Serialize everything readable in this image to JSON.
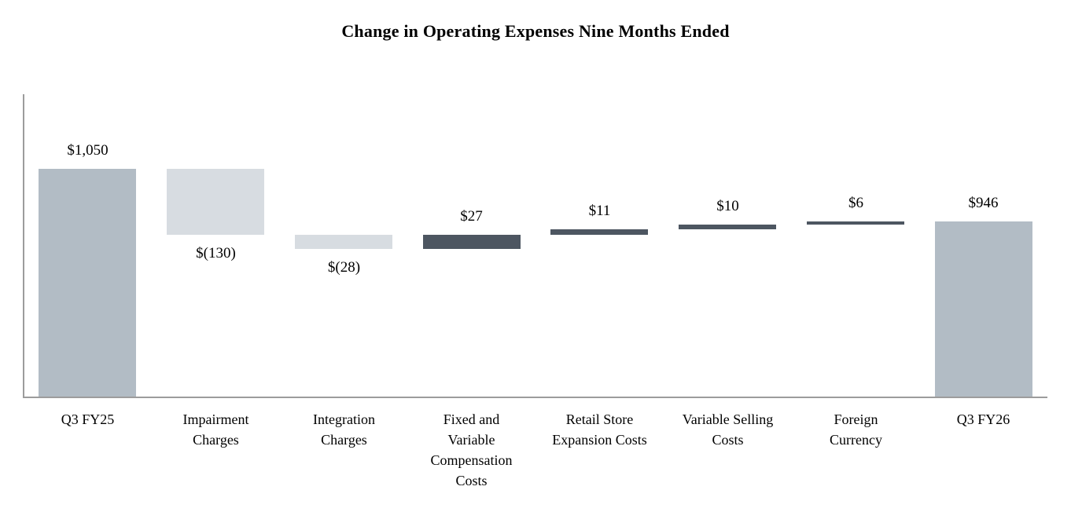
{
  "title": "Change in Operating Expenses Nine Months Ended",
  "chart_data": {
    "type": "bar",
    "subtype": "waterfall",
    "title": "Change in Operating Expenses Nine Months Ended",
    "xlabel": "",
    "ylabel": "",
    "legend": false,
    "grid": false,
    "axis": {
      "ylim": [
        600,
        1050
      ],
      "baseline_value": 600,
      "y_ticks_visible": false
    },
    "categories": [
      "Q3 FY25",
      "Impairment Charges",
      "Integration Charges",
      "Fixed and Variable Compensation Costs",
      "Retail Store Expansion Costs",
      "Variable Selling Costs",
      "Foreign Currency",
      "Q3 FY26"
    ],
    "steps": [
      {
        "label": "Q3 FY25",
        "label_lines": [
          "Q3 FY25"
        ],
        "kind": "total",
        "value": 1050,
        "cumulative": 1050,
        "display": "$1,050",
        "label_position": "above"
      },
      {
        "label": "Impairment Charges",
        "label_lines": [
          "Impairment",
          "Charges"
        ],
        "kind": "decrease",
        "value": -130,
        "cumulative": 920,
        "display": "$(130)",
        "label_position": "below"
      },
      {
        "label": "Integration Charges",
        "label_lines": [
          "Integration",
          "Charges"
        ],
        "kind": "decrease",
        "value": -28,
        "cumulative": 892,
        "display": "$(28)",
        "label_position": "below"
      },
      {
        "label": "Fixed and Variable Compensation Costs",
        "label_lines": [
          "Fixed and",
          "Variable",
          "Compensation",
          "Costs"
        ],
        "kind": "increase",
        "value": 27,
        "cumulative": 919,
        "display": "$27",
        "label_position": "above"
      },
      {
        "label": "Retail Store Expansion Costs",
        "label_lines": [
          "Retail Store",
          "Expansion Costs"
        ],
        "kind": "increase",
        "value": 11,
        "cumulative": 930,
        "display": "$11",
        "label_position": "above"
      },
      {
        "label": "Variable Selling Costs",
        "label_lines": [
          "Variable Selling",
          "Costs"
        ],
        "kind": "increase",
        "value": 10,
        "cumulative": 940,
        "display": "$10",
        "label_position": "above"
      },
      {
        "label": "Foreign Currency",
        "label_lines": [
          "Foreign",
          "Currency"
        ],
        "kind": "increase",
        "value": 6,
        "cumulative": 946,
        "display": "$6",
        "label_position": "above"
      },
      {
        "label": "Q3 FY26",
        "label_lines": [
          "Q3 FY26"
        ],
        "kind": "total",
        "value": 946,
        "cumulative": 946,
        "display": "$946",
        "label_position": "above"
      }
    ],
    "colors": {
      "total_bar": "#b2bcc5",
      "decrease_bar": "#d7dce1",
      "increase_bar": "#4d5661",
      "axis_line": "#9c9c9c",
      "text": "#000000",
      "background": "#ffffff"
    }
  }
}
